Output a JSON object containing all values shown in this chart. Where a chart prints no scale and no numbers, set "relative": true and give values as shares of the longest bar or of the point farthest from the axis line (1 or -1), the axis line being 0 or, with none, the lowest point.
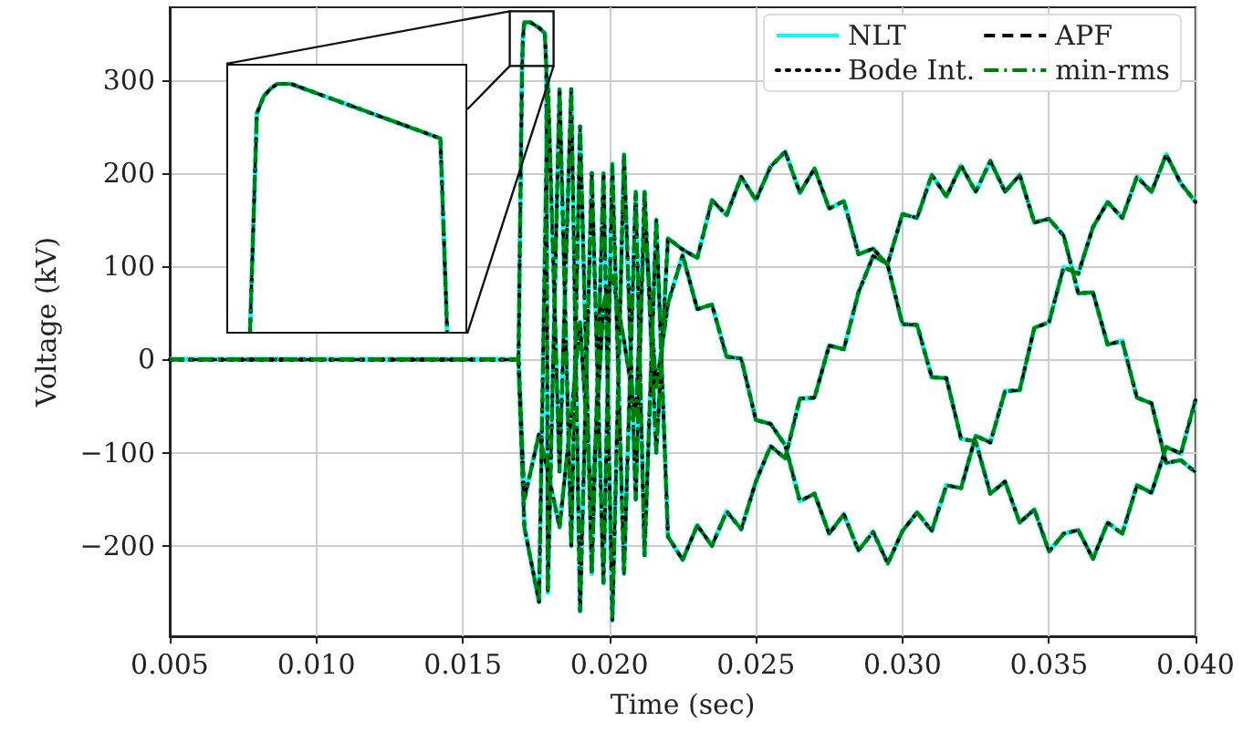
{
  "chart_data": [
    {
      "type": "line",
      "xlabel": "Time (sec)",
      "ylabel": "Voltage (kV)",
      "xlim": [
        0.005,
        0.04
      ],
      "ylim": [
        -297,
        378
      ],
      "xticks": [
        {
          "value": 0.005,
          "label": "0.005"
        },
        {
          "value": 0.01,
          "label": "0.010"
        },
        {
          "value": 0.015,
          "label": "0.015"
        },
        {
          "value": 0.02,
          "label": "0.020"
        },
        {
          "value": 0.025,
          "label": "0.025"
        },
        {
          "value": 0.03,
          "label": "0.030"
        },
        {
          "value": 0.035,
          "label": "0.035"
        },
        {
          "value": 0.04,
          "label": "0.040"
        }
      ],
      "yticks": [
        {
          "value": -200,
          "label": "−200"
        },
        {
          "value": -100,
          "label": "−100"
        },
        0,
        100,
        200,
        300
      ],
      "grid": true,
      "legend": "top right",
      "x": [
        0.005,
        0.0169,
        0.0171,
        0.0176,
        0.0179,
        0.0183,
        0.0187,
        0.019,
        0.0194,
        0.0198,
        0.0201,
        0.0205,
        0.0209,
        0.0212,
        0.0216,
        0.022,
        0.0225,
        0.023,
        0.0235,
        0.024,
        0.0245,
        0.025,
        0.0255,
        0.026,
        0.0265,
        0.027,
        0.0275,
        0.028,
        0.0285,
        0.029,
        0.0295,
        0.03,
        0.0305,
        0.031,
        0.0315,
        0.032,
        0.0325,
        0.033,
        0.0335,
        0.034,
        0.0345,
        0.035,
        0.0355,
        0.036,
        0.0365,
        0.037,
        0.0375,
        0.038,
        0.0385,
        0.039,
        0.0395,
        0.04
      ],
      "series": [
        {
          "name": "NLT",
          "color": "#00ffff",
          "line_style": "solid",
          "x": [
            0.005,
            0.0169,
            0.01702,
            0.01705,
            0.0171,
            0.0173,
            0.0176,
            0.0178,
            0.01785,
            0.0179,
            0.0183,
            0.0187,
            0.019,
            0.0194,
            0.0198,
            0.0201,
            0.0205,
            0.0209,
            0.0212,
            0.0216,
            0.022,
            0.0225,
            0.023,
            0.0235,
            0.024,
            0.0245,
            0.025,
            0.0255,
            0.026,
            0.0265,
            0.027,
            0.0275,
            0.028,
            0.0285,
            0.029,
            0.0295,
            0.03,
            0.0305,
            0.031,
            0.0315,
            0.032,
            0.0325,
            0.033,
            0.0335,
            0.034,
            0.0345,
            0.035,
            0.0355,
            0.036,
            0.0365,
            0.037,
            0.0375,
            0.038,
            0.0385,
            0.039,
            0.0395,
            0.04
          ],
          "values": [
            0,
            0,
            312,
            345,
            362,
            362,
            356,
            350,
            312,
            -250,
            290,
            -200,
            250,
            -230,
            200,
            -280,
            220,
            -150,
            180,
            -100,
            130,
            118,
            109,
            171,
            155,
            196,
            171,
            207,
            223,
            179,
            205,
            162,
            170,
            113,
            119,
            101,
            38,
            37,
            -19,
            -20,
            -85,
            -88,
            -144,
            -131,
            -175,
            -161,
            -206,
            -187,
            -183,
            -214,
            -175,
            -187,
            -135,
            -143,
            -94,
            -101,
            -43
          ]
        },
        {
          "color": "#00ffff",
          "line_style": "solid",
          "values": [
            0,
            0,
            -180,
            -260,
            300,
            -120,
            290,
            -270,
            200,
            -240,
            210,
            -230,
            180,
            -210,
            150,
            -190,
            -215,
            -178,
            -200,
            -163,
            -182,
            -131,
            -93,
            -106,
            -42,
            -41,
            15,
            11,
            72,
            111,
            103,
            156,
            152,
            198,
            175,
            208,
            180,
            213,
            180,
            198,
            147,
            151,
            133,
            71,
            72,
            16,
            20,
            -41,
            -47,
            -111,
            -108,
            -121
          ]
        },
        {
          "color": "#00ffff",
          "line_style": "solid",
          "values": [
            0,
            0,
            -150,
            -80,
            -120,
            -180,
            -60,
            40,
            -160,
            60,
            90,
            20,
            -60,
            150,
            -30,
            60,
            112,
            54,
            59,
            3,
            1,
            -65,
            -69,
            -92,
            -152,
            -144,
            -187,
            -166,
            -205,
            -185,
            -219,
            -184,
            -164,
            -184,
            -135,
            -138,
            -82,
            -89,
            -34,
            -33,
            34,
            40,
            99,
            92,
            142,
            169,
            152,
            196,
            180,
            220,
            189,
            169
          ]
        },
        {
          "name": "Bode Int.",
          "color": "#000000",
          "line_style": "dotted",
          "x": [
            0.005,
            0.0169,
            0.01702,
            0.01705,
            0.0171,
            0.0173,
            0.0176,
            0.0178,
            0.01785,
            0.0179,
            0.0183,
            0.0187,
            0.019,
            0.0194,
            0.0198,
            0.0201,
            0.0205,
            0.0209,
            0.0212,
            0.0216,
            0.022,
            0.0225,
            0.023,
            0.0235,
            0.024,
            0.0245,
            0.025,
            0.0255,
            0.026,
            0.0265,
            0.027,
            0.0275,
            0.028,
            0.0285,
            0.029,
            0.0295,
            0.03,
            0.0305,
            0.031,
            0.0315,
            0.032,
            0.0325,
            0.033,
            0.0335,
            0.034,
            0.0345,
            0.035,
            0.0355,
            0.036,
            0.0365,
            0.037,
            0.0375,
            0.038,
            0.0385,
            0.039,
            0.0395,
            0.04
          ],
          "values": [
            0,
            0,
            312,
            345,
            362,
            362,
            356,
            350,
            312,
            -250,
            290,
            -200,
            250,
            -230,
            200,
            -280,
            220,
            -150,
            180,
            -100,
            130,
            118,
            109,
            171,
            155,
            196,
            171,
            207,
            223,
            179,
            205,
            162,
            170,
            113,
            119,
            101,
            38,
            37,
            -19,
            -20,
            -85,
            -88,
            -144,
            -131,
            -175,
            -161,
            -206,
            -187,
            -183,
            -214,
            -175,
            -187,
            -135,
            -143,
            -94,
            -101,
            -43
          ]
        },
        {
          "color": "#000000",
          "line_style": "dotted",
          "values": [
            0,
            0,
            -180,
            -260,
            300,
            -120,
            290,
            -270,
            200,
            -240,
            210,
            -230,
            180,
            -210,
            150,
            -190,
            -215,
            -178,
            -200,
            -163,
            -182,
            -131,
            -93,
            -106,
            -42,
            -41,
            15,
            11,
            72,
            111,
            103,
            156,
            152,
            198,
            175,
            208,
            180,
            213,
            180,
            198,
            147,
            151,
            133,
            71,
            72,
            16,
            20,
            -41,
            -47,
            -111,
            -108,
            -121
          ]
        },
        {
          "color": "#000000",
          "line_style": "dotted",
          "values": [
            0,
            0,
            -150,
            -80,
            -120,
            -180,
            -60,
            40,
            -160,
            60,
            90,
            20,
            -60,
            150,
            -30,
            60,
            112,
            54,
            59,
            3,
            1,
            -65,
            -69,
            -92,
            -152,
            -144,
            -187,
            -166,
            -205,
            -185,
            -219,
            -184,
            -164,
            -184,
            -135,
            -138,
            -82,
            -89,
            -34,
            -33,
            34,
            40,
            99,
            92,
            142,
            169,
            152,
            196,
            180,
            220,
            189,
            169
          ]
        },
        {
          "name": "APF",
          "color": "#000000",
          "line_style": "dashed",
          "x": [
            0.005,
            0.0169,
            0.01702,
            0.01705,
            0.0171,
            0.0173,
            0.0176,
            0.0178,
            0.01785,
            0.0179,
            0.0183,
            0.0187,
            0.019,
            0.0194,
            0.0198,
            0.0201,
            0.0205,
            0.0209,
            0.0212,
            0.0216,
            0.022,
            0.0225,
            0.023,
            0.0235,
            0.024,
            0.0245,
            0.025,
            0.0255,
            0.026,
            0.0265,
            0.027,
            0.0275,
            0.028,
            0.0285,
            0.029,
            0.0295,
            0.03,
            0.0305,
            0.031,
            0.0315,
            0.032,
            0.0325,
            0.033,
            0.0335,
            0.034,
            0.0345,
            0.035,
            0.0355,
            0.036,
            0.0365,
            0.037,
            0.0375,
            0.038,
            0.0385,
            0.039,
            0.0395,
            0.04
          ],
          "values": [
            0,
            0,
            312,
            345,
            362,
            362,
            356,
            350,
            312,
            -250,
            290,
            -200,
            250,
            -230,
            200,
            -280,
            220,
            -150,
            180,
            -100,
            130,
            118,
            109,
            171,
            155,
            196,
            171,
            207,
            223,
            179,
            205,
            162,
            170,
            113,
            119,
            101,
            38,
            37,
            -19,
            -20,
            -85,
            -88,
            -144,
            -131,
            -175,
            -161,
            -206,
            -187,
            -183,
            -214,
            -175,
            -187,
            -135,
            -143,
            -94,
            -101,
            -43
          ]
        },
        {
          "color": "#000000",
          "line_style": "dashed",
          "values": [
            0,
            0,
            -180,
            -260,
            300,
            -120,
            290,
            -270,
            200,
            -240,
            210,
            -230,
            180,
            -210,
            150,
            -190,
            -215,
            -178,
            -200,
            -163,
            -182,
            -131,
            -93,
            -106,
            -42,
            -41,
            15,
            11,
            72,
            111,
            103,
            156,
            152,
            198,
            175,
            208,
            180,
            213,
            180,
            198,
            147,
            151,
            133,
            71,
            72,
            16,
            20,
            -41,
            -47,
            -111,
            -108,
            -121
          ]
        },
        {
          "color": "#000000",
          "line_style": "dashed",
          "values": [
            0,
            0,
            -150,
            -80,
            -120,
            -180,
            -60,
            40,
            -160,
            60,
            90,
            20,
            -60,
            150,
            -30,
            60,
            112,
            54,
            59,
            3,
            1,
            -65,
            -69,
            -92,
            -152,
            -144,
            -187,
            -166,
            -205,
            -185,
            -219,
            -184,
            -164,
            -184,
            -135,
            -138,
            -82,
            -89,
            -34,
            -33,
            34,
            40,
            99,
            92,
            142,
            169,
            152,
            196,
            180,
            220,
            189,
            169
          ]
        },
        {
          "name": "min-rms",
          "color": "#008000",
          "line_style": "dashdot",
          "x": [
            0.005,
            0.0169,
            0.01702,
            0.01705,
            0.0171,
            0.0173,
            0.0176,
            0.0178,
            0.01785,
            0.0179,
            0.0183,
            0.0187,
            0.019,
            0.0194,
            0.0198,
            0.0201,
            0.0205,
            0.0209,
            0.0212,
            0.0216,
            0.022,
            0.0225,
            0.023,
            0.0235,
            0.024,
            0.0245,
            0.025,
            0.0255,
            0.026,
            0.0265,
            0.027,
            0.0275,
            0.028,
            0.0285,
            0.029,
            0.0295,
            0.03,
            0.0305,
            0.031,
            0.0315,
            0.032,
            0.0325,
            0.033,
            0.0335,
            0.034,
            0.0345,
            0.035,
            0.0355,
            0.036,
            0.0365,
            0.037,
            0.0375,
            0.038,
            0.0385,
            0.039,
            0.0395,
            0.04
          ],
          "values": [
            0,
            0,
            312,
            345,
            362,
            362,
            356,
            350,
            312,
            -250,
            290,
            -200,
            250,
            -230,
            200,
            -280,
            220,
            -150,
            180,
            -100,
            130,
            118,
            109,
            171,
            155,
            196,
            171,
            207,
            223,
            179,
            205,
            162,
            170,
            113,
            119,
            101,
            38,
            37,
            -19,
            -20,
            -85,
            -88,
            -144,
            -131,
            -175,
            -161,
            -206,
            -187,
            -183,
            -214,
            -175,
            -187,
            -135,
            -143,
            -94,
            -101,
            -43
          ]
        },
        {
          "color": "#008000",
          "line_style": "dashdot",
          "values": [
            0,
            0,
            -180,
            -260,
            300,
            -120,
            290,
            -270,
            200,
            -240,
            210,
            -230,
            180,
            -210,
            150,
            -190,
            -215,
            -178,
            -200,
            -163,
            -182,
            -131,
            -93,
            -106,
            -42,
            -41,
            15,
            11,
            72,
            111,
            103,
            156,
            152,
            198,
            175,
            208,
            180,
            213,
            180,
            198,
            147,
            151,
            133,
            71,
            72,
            16,
            20,
            -41,
            -47,
            -111,
            -108,
            -121
          ]
        },
        {
          "color": "#008000",
          "line_style": "dashdot",
          "values": [
            0,
            0,
            -150,
            -80,
            -120,
            -180,
            -60,
            40,
            -160,
            60,
            90,
            20,
            -60,
            150,
            -30,
            60,
            112,
            54,
            59,
            3,
            1,
            -65,
            -69,
            -92,
            -152,
            -144,
            -187,
            -166,
            -205,
            -185,
            -219,
            -184,
            -164,
            -184,
            -135,
            -138,
            -82,
            -89,
            -34,
            -33,
            34,
            40,
            99,
            92,
            142,
            169,
            152,
            196,
            180,
            220,
            189,
            169
          ]
        }
      ]
    },
    {
      "type": "line",
      "relative": true,
      "tick_labels": false,
      "categories": [
        null,
        null,
        null,
        null,
        null,
        null,
        null,
        null,
        null,
        null,
        null,
        null,
        null,
        null,
        null,
        null,
        null,
        null,
        null,
        null,
        null,
        null,
        null,
        null,
        null,
        null,
        null,
        null,
        null,
        null
      ],
      "series": [
        {
          "color": "#00ffff",
          "line_style": "solid",
          "values": [
            0,
            0.88,
            0.95,
            0.98,
            1,
            1,
            1,
            0.99,
            0.98,
            0.97,
            0.96,
            0.95,
            0.94,
            0.93,
            0.92,
            0.91,
            0.9,
            0.89,
            0.88,
            0.87,
            0.86,
            0.85,
            0.84,
            0.83,
            0.82,
            0.81,
            0.8,
            0.79,
            0.78,
            0
          ]
        },
        {
          "color": "#000000",
          "line_style": "dotted",
          "values": [
            0,
            0.88,
            0.95,
            0.98,
            1,
            1,
            1,
            0.99,
            0.98,
            0.97,
            0.96,
            0.95,
            0.94,
            0.93,
            0.92,
            0.91,
            0.9,
            0.89,
            0.88,
            0.87,
            0.86,
            0.85,
            0.84,
            0.83,
            0.82,
            0.81,
            0.8,
            0.79,
            0.78,
            0
          ]
        },
        {
          "color": "#000000",
          "line_style": "dashed",
          "values": [
            0,
            0.88,
            0.95,
            0.98,
            1,
            1,
            1,
            0.99,
            0.98,
            0.97,
            0.96,
            0.95,
            0.94,
            0.93,
            0.92,
            0.91,
            0.9,
            0.89,
            0.88,
            0.87,
            0.86,
            0.85,
            0.84,
            0.83,
            0.82,
            0.81,
            0.8,
            0.79,
            0.78,
            0
          ]
        },
        {
          "color": "#008000",
          "line_style": "dashdot",
          "values": [
            0,
            0.88,
            0.95,
            0.98,
            1,
            1,
            1,
            0.99,
            0.98,
            0.97,
            0.96,
            0.95,
            0.94,
            0.93,
            0.92,
            0.91,
            0.9,
            0.89,
            0.88,
            0.87,
            0.86,
            0.85,
            0.84,
            0.83,
            0.82,
            0.81,
            0.8,
            0.79,
            0.78,
            0
          ]
        }
      ]
    }
  ]
}
